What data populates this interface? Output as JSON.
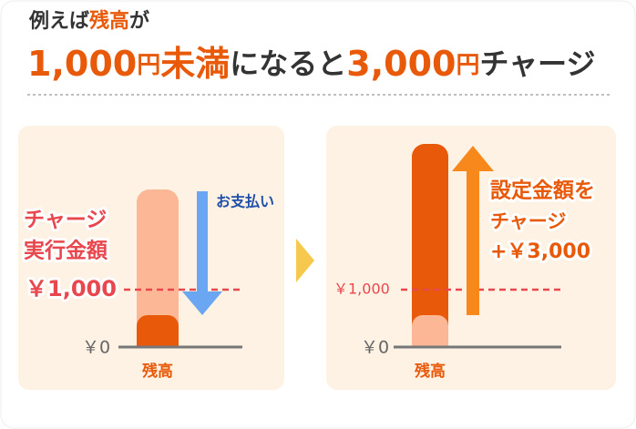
{
  "header": {
    "line1": [
      "例えば",
      "残高",
      "が"
    ],
    "line2": [
      "1,000",
      "円",
      "未満",
      "になると",
      "3,000",
      "円",
      "チャージ"
    ]
  },
  "left_panel": {
    "label_line1": "チャージ",
    "label_line2": "実行金額",
    "threshold": "￥1,000",
    "zero": "￥0",
    "bar_label": "残高",
    "arrow_label": "お支払い"
  },
  "right_panel": {
    "threshold": "￥1,000",
    "zero": "￥0",
    "bar_label": "残高",
    "label_line1": "設定金額を",
    "label_line2": "チャージ",
    "label_line3": "+￥3,000"
  }
}
